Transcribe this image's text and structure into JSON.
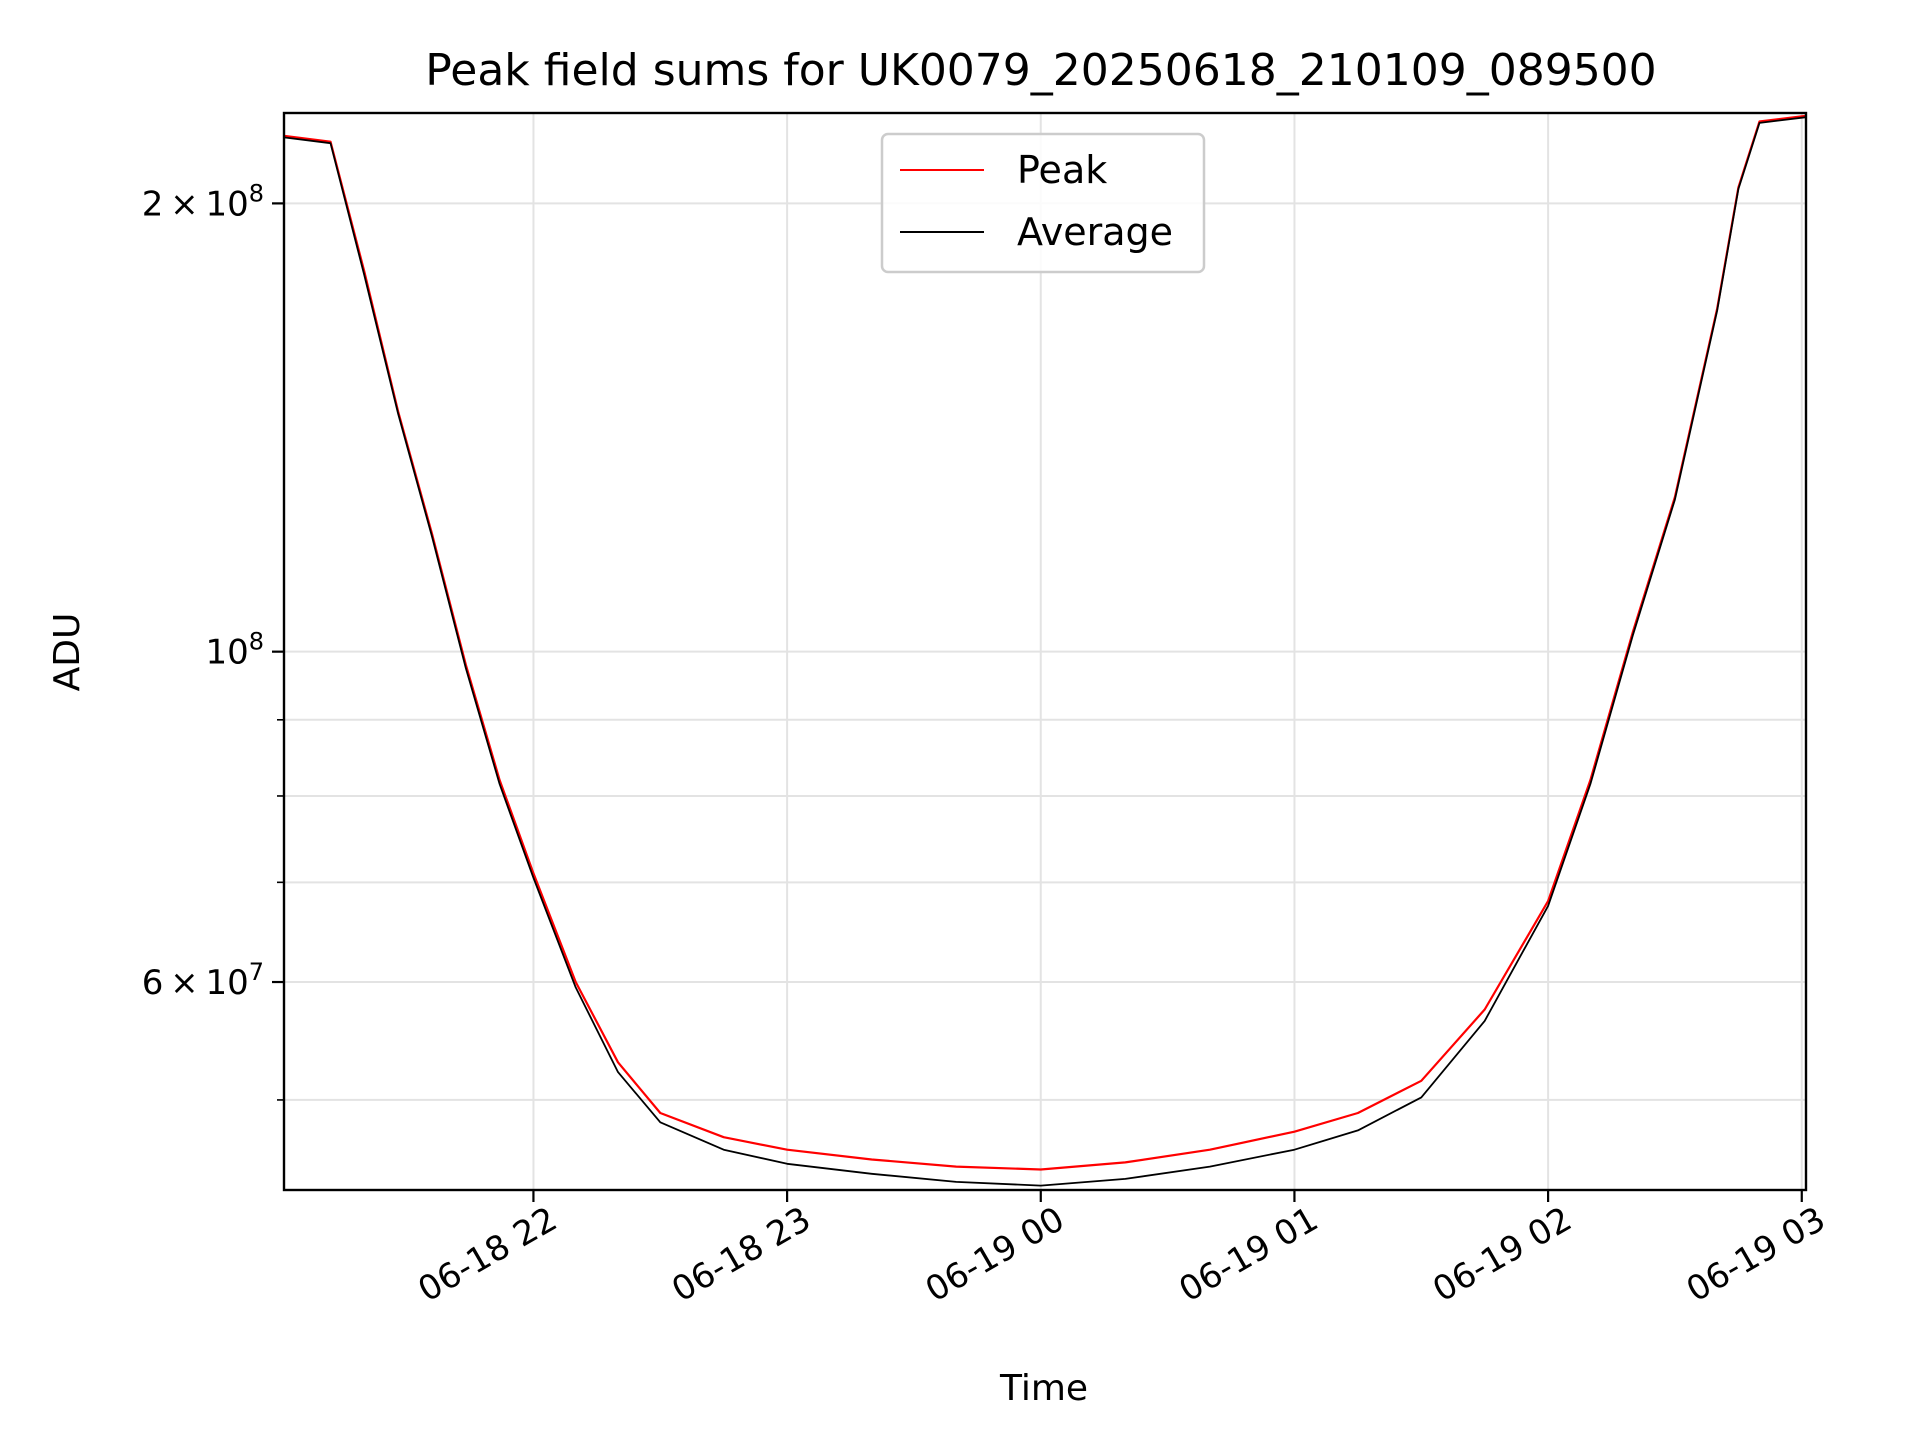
{
  "chart_data": {
    "type": "line",
    "title": "Peak field sums for UK0079_20250618_210109_089500",
    "xlabel": "Time",
    "ylabel": "ADU",
    "y_scale": "log",
    "grid": true,
    "legend_placement": "upper-center",
    "xlim": [
      "2025-06-18 21:01",
      "2025-06-19 03:01"
    ],
    "ylim": [
      43500000,
      230000000
    ],
    "x_ticks": [
      "06-18 22",
      "06-18 23",
      "06-19 00",
      "06-19 01",
      "06-19 02",
      "06-19 03"
    ],
    "x_tick_values": [
      "2025-06-18 22:00",
      "2025-06-18 23:00",
      "2025-06-19 00:00",
      "2025-06-19 01:00",
      "2025-06-19 02:00",
      "2025-06-19 03:00"
    ],
    "y_major_ticks": [
      {
        "value": 60000000,
        "mantissa": "6",
        "exponent": "7"
      },
      {
        "value": 100000000,
        "mantissa": "",
        "exponent": "8"
      },
      {
        "value": 200000000,
        "mantissa": "2",
        "exponent": "8"
      }
    ],
    "y_minor_ticks": [
      50000000,
      70000000,
      80000000,
      90000000
    ],
    "series": [
      {
        "name": "Peak",
        "color": "#ff0000",
        "x": [
          "2025-06-18 21:01",
          "2025-06-18 21:12",
          "2025-06-18 21:20",
          "2025-06-18 21:28",
          "2025-06-18 21:36",
          "2025-06-18 21:44",
          "2025-06-18 21:52",
          "2025-06-18 22:00",
          "2025-06-18 22:10",
          "2025-06-18 22:20",
          "2025-06-18 22:30",
          "2025-06-18 22:45",
          "2025-06-18 23:00",
          "2025-06-18 23:20",
          "2025-06-18 23:40",
          "2025-06-19 00:00",
          "2025-06-19 00:20",
          "2025-06-19 00:40",
          "2025-06-19 01:00",
          "2025-06-19 01:15",
          "2025-06-19 01:30",
          "2025-06-19 01:45",
          "2025-06-19 02:00",
          "2025-06-19 02:10",
          "2025-06-19 02:20",
          "2025-06-19 02:30",
          "2025-06-19 02:40",
          "2025-06-19 02:45",
          "2025-06-19 02:50",
          "2025-06-19 03:01"
        ],
        "y": [
          222000000,
          220000000,
          180000000,
          145000000,
          120000000,
          98000000,
          82000000,
          71000000,
          60000000,
          53000000,
          49000000,
          47200000,
          46300000,
          45600000,
          45100000,
          44900000,
          45400000,
          46300000,
          47600000,
          49000000,
          51500000,
          57500000,
          68000000,
          82000000,
          103000000,
          127000000,
          170000000,
          205000000,
          227000000,
          229000000
        ]
      },
      {
        "name": "Average",
        "color": "#000000",
        "x": [
          "2025-06-18 21:01",
          "2025-06-18 21:12",
          "2025-06-18 21:20",
          "2025-06-18 21:28",
          "2025-06-18 21:36",
          "2025-06-18 21:44",
          "2025-06-18 21:52",
          "2025-06-18 22:00",
          "2025-06-18 22:10",
          "2025-06-18 22:20",
          "2025-06-18 22:30",
          "2025-06-18 22:45",
          "2025-06-18 23:00",
          "2025-06-18 23:20",
          "2025-06-18 23:40",
          "2025-06-19 00:00",
          "2025-06-19 00:20",
          "2025-06-19 00:40",
          "2025-06-19 01:00",
          "2025-06-19 01:15",
          "2025-06-19 01:30",
          "2025-06-19 01:45",
          "2025-06-19 02:00",
          "2025-06-19 02:10",
          "2025-06-19 02:20",
          "2025-06-19 02:30",
          "2025-06-19 02:40",
          "2025-06-19 02:45",
          "2025-06-19 02:50",
          "2025-06-19 03:01"
        ],
        "y": [
          221500000,
          219500000,
          179000000,
          144500000,
          119500000,
          97500000,
          81500000,
          70500000,
          59500000,
          52200000,
          48300000,
          46300000,
          45300000,
          44600000,
          44050000,
          43800000,
          44250000,
          45100000,
          46300000,
          47700000,
          50200000,
          56500000,
          67500000,
          81500000,
          102500000,
          126500000,
          169500000,
          204500000,
          226500000,
          228500000
        ]
      }
    ]
  }
}
